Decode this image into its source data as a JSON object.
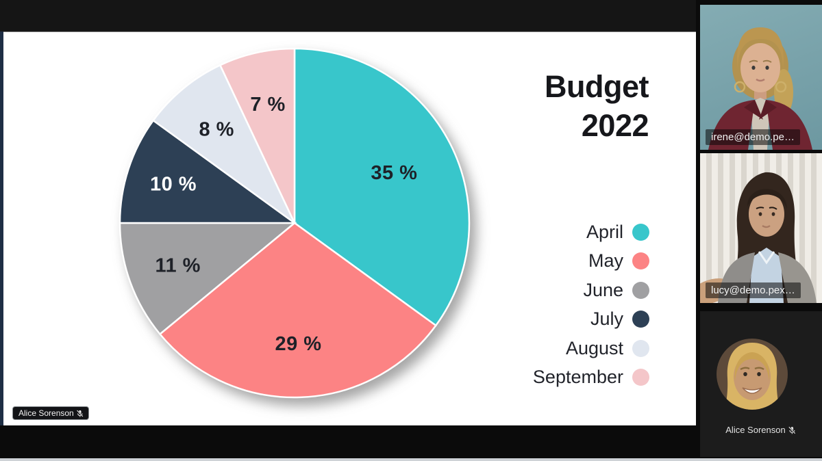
{
  "slide": {
    "title_line1": "Budget",
    "title_line2": "2022",
    "presenter_pill": "Alice Sorenson"
  },
  "chart_data": {
    "type": "pie",
    "title": "Budget 2022",
    "categories": [
      "April",
      "May",
      "June",
      "July",
      "August",
      "September"
    ],
    "values": [
      35,
      29,
      11,
      10,
      8,
      7
    ],
    "value_labels": [
      "35 %",
      "29 %",
      "11 %",
      "10 %",
      "8 %",
      "7 %"
    ],
    "colors": [
      "#38c6cb",
      "#fc8384",
      "#a0a0a2",
      "#2d4055",
      "#e0e6ef",
      "#f4c6c9"
    ],
    "start_angle_deg": 0,
    "direction": "clockwise",
    "legend_position": "right",
    "labels_inside": true
  },
  "sidebar": {
    "participants": [
      {
        "type": "video",
        "label": "irene@demo.pe…"
      },
      {
        "type": "video",
        "label": "lucy@demo.pex…"
      },
      {
        "type": "avatar",
        "name": "Alice Sorenson",
        "muted": true
      }
    ]
  }
}
